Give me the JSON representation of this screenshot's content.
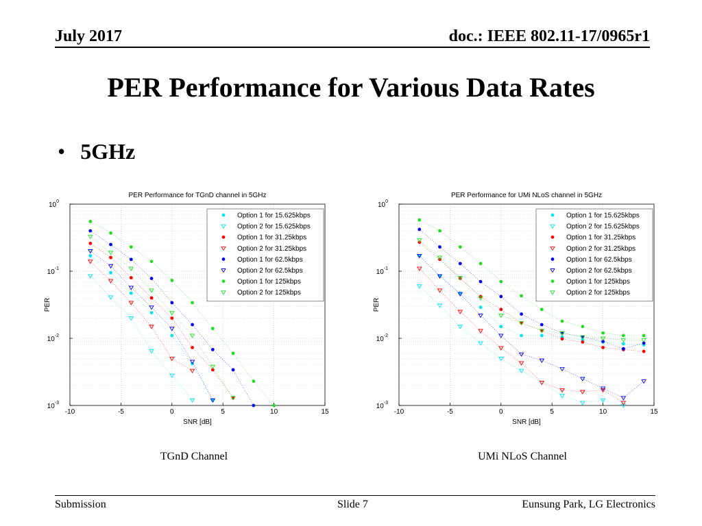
{
  "header": {
    "date": "July 2017",
    "doc": "doc.: IEEE 802.11-17/0965r1"
  },
  "title": "PER Performance for Various Data Rates",
  "bullet": {
    "symbol": "•",
    "text": "5GHz"
  },
  "captions": [
    "TGnD Channel",
    "UMi NLoS Channel"
  ],
  "footer": {
    "left": "Submission",
    "center": "Slide 7",
    "right": "Eunsung Park, LG Electronics"
  },
  "chart_data": [
    {
      "type": "scatter",
      "title": "PER Performance for TGnD channel in 5GHz",
      "xlabel": "SNR [dB]",
      "ylabel": "PER",
      "xlim": [
        -10,
        15
      ],
      "ylim": [
        0.001,
        1
      ],
      "yscale": "log",
      "grid": true,
      "legend_position": "top-right",
      "xticks": [
        "-10",
        "-5",
        "0",
        "5",
        "10",
        "15"
      ],
      "series": [
        {
          "name": "Option 1 for 15.625kbps",
          "color": "#00e5ee",
          "marker": "dot",
          "x": [
            -8,
            -6,
            -4,
            -2,
            0,
            2,
            4
          ],
          "y": [
            0.17,
            0.095,
            0.047,
            0.024,
            0.011,
            0.0042,
            0.0012
          ]
        },
        {
          "name": "Option 2 for 15.625kbps",
          "color": "#00e5ee",
          "marker": "triangle",
          "x": [
            -8,
            -6,
            -4,
            -2,
            0,
            2
          ],
          "y": [
            0.085,
            0.041,
            0.02,
            0.0065,
            0.0028,
            0.0012
          ]
        },
        {
          "name": "Option 1 for 31.25kbps",
          "color": "#ff0000",
          "marker": "dot",
          "x": [
            -8,
            -6,
            -4,
            -2,
            0,
            2,
            4,
            6
          ],
          "y": [
            0.26,
            0.16,
            0.08,
            0.04,
            0.02,
            0.0073,
            0.0034,
            0.0013
          ]
        },
        {
          "name": "Option 2 for 31.25kbps",
          "color": "#ff0000",
          "marker": "triangle",
          "x": [
            -8,
            -6,
            -4,
            -2,
            0,
            2
          ],
          "y": [
            0.14,
            0.072,
            0.034,
            0.015,
            0.005,
            0.0033
          ]
        },
        {
          "name": "Option 1 for 62.5kbps",
          "color": "#0000ee",
          "marker": "dot",
          "x": [
            -8,
            -6,
            -4,
            -2,
            0,
            2,
            4,
            6,
            8
          ],
          "y": [
            0.4,
            0.25,
            0.15,
            0.078,
            0.034,
            0.016,
            0.0068,
            0.0034,
            0.001
          ]
        },
        {
          "name": "Option 2 for 62.5kbps",
          "color": "#0000ee",
          "marker": "triangle",
          "x": [
            -8,
            -6,
            -4,
            -2,
            0,
            2,
            4
          ],
          "y": [
            0.2,
            0.12,
            0.057,
            0.029,
            0.014,
            0.0045,
            0.0012
          ]
        },
        {
          "name": "Option 1 for 125kbps",
          "color": "#22dd22",
          "marker": "dot",
          "x": [
            -8,
            -6,
            -4,
            -2,
            0,
            2,
            4,
            6,
            8,
            10
          ],
          "y": [
            0.55,
            0.37,
            0.23,
            0.14,
            0.073,
            0.034,
            0.014,
            0.006,
            0.0023,
            0.001
          ]
        },
        {
          "name": "Option 2 for 125kbps",
          "color": "#22dd22",
          "marker": "triangle",
          "x": [
            -8,
            -6,
            -4,
            -2,
            0,
            2,
            4,
            6
          ],
          "y": [
            0.33,
            0.19,
            0.11,
            0.052,
            0.024,
            0.011,
            0.0038,
            0.0013
          ]
        }
      ]
    },
    {
      "type": "scatter",
      "title": "PER Performance for UMi NLoS channel in 5GHz",
      "xlabel": "SNR [dB]",
      "ylabel": "PER",
      "xlim": [
        -10,
        15
      ],
      "ylim": [
        0.001,
        1
      ],
      "yscale": "log",
      "grid": true,
      "legend_position": "top-right",
      "xticks": [
        "-10",
        "-5",
        "0",
        "5",
        "10",
        "15"
      ],
      "series": [
        {
          "name": "Option 1 for 15.625kbps",
          "color": "#00e5ee",
          "marker": "dot",
          "x": [
            -8,
            -6,
            -4,
            -2,
            0,
            2,
            4,
            6,
            8,
            10,
            12,
            14
          ],
          "y": [
            0.17,
            0.085,
            0.047,
            0.029,
            0.015,
            0.011,
            0.011,
            0.0105,
            0.0095,
            0.0088,
            0.0083,
            0.008
          ]
        },
        {
          "name": "Option 2 for 15.625kbps",
          "color": "#00e5ee",
          "marker": "triangle",
          "x": [
            -8,
            -6,
            -4,
            -2,
            0,
            2,
            4,
            6,
            8,
            10,
            12
          ],
          "y": [
            0.06,
            0.031,
            0.015,
            0.0085,
            0.005,
            0.0033,
            0.0022,
            0.0014,
            0.0011,
            0.0012,
            0.001
          ]
        },
        {
          "name": "Option 1 for 31.25kbps",
          "color": "#ff0000",
          "marker": "dot",
          "x": [
            -8,
            -6,
            -4,
            -2,
            0,
            2,
            4,
            6,
            8,
            10,
            12,
            14
          ],
          "y": [
            0.27,
            0.15,
            0.078,
            0.042,
            0.027,
            0.017,
            0.013,
            0.0098,
            0.0088,
            0.0073,
            0.0068,
            0.0064
          ]
        },
        {
          "name": "Option 2 for 31.25kbps",
          "color": "#ff0000",
          "marker": "triangle",
          "x": [
            -8,
            -6,
            -4,
            -2,
            0,
            2,
            4,
            6,
            8,
            10,
            12
          ],
          "y": [
            0.11,
            0.052,
            0.025,
            0.013,
            0.0072,
            0.0043,
            0.0022,
            0.0017,
            0.0016,
            0.0017,
            0.0011
          ]
        },
        {
          "name": "Option 1 for 62.5kbps",
          "color": "#0000ee",
          "marker": "dot",
          "x": [
            -8,
            -6,
            -4,
            -2,
            0,
            2,
            4,
            6,
            8,
            10,
            12,
            14
          ],
          "y": [
            0.42,
            0.23,
            0.13,
            0.07,
            0.042,
            0.023,
            0.016,
            0.012,
            0.0105,
            0.009,
            0.007,
            0.0085
          ]
        },
        {
          "name": "Option 2 for 62.5kbps",
          "color": "#0000ee",
          "marker": "triangle",
          "x": [
            -8,
            -6,
            -4,
            -2,
            0,
            2,
            4,
            6,
            8,
            10,
            12,
            14
          ],
          "y": [
            0.17,
            0.085,
            0.046,
            0.022,
            0.011,
            0.0058,
            0.0047,
            0.0035,
            0.0025,
            0.0018,
            0.0013,
            0.0023
          ]
        },
        {
          "name": "Option 1 for 125kbps",
          "color": "#22dd22",
          "marker": "dot",
          "x": [
            -8,
            -6,
            -4,
            -2,
            0,
            2,
            4,
            6,
            8,
            10,
            12,
            14
          ],
          "y": [
            0.58,
            0.4,
            0.23,
            0.13,
            0.07,
            0.043,
            0.027,
            0.018,
            0.015,
            0.012,
            0.011,
            0.011
          ]
        },
        {
          "name": "Option 2 for 125kbps",
          "color": "#22dd22",
          "marker": "triangle",
          "x": [
            -8,
            -6,
            -4,
            -2,
            0,
            2,
            4,
            6,
            8,
            10,
            12,
            14
          ],
          "y": [
            0.29,
            0.16,
            0.08,
            0.04,
            0.022,
            0.017,
            0.013,
            0.012,
            0.0105,
            0.01,
            0.0095,
            0.0095
          ]
        }
      ]
    }
  ]
}
